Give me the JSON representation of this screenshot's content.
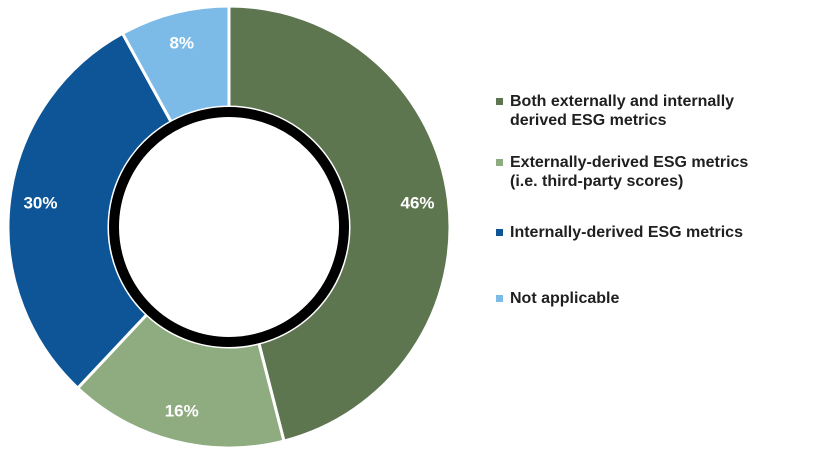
{
  "chart_data": {
    "type": "pie",
    "variant": "donut",
    "title": "",
    "legend_position": "right",
    "slices": [
      {
        "label": "Both externally and internally\nderived ESG metrics",
        "value": 46,
        "value_label": "46%",
        "color": "#5e7650"
      },
      {
        "label": "Externally-derived ESG metrics\n(i.e. third-party scores)",
        "value": 16,
        "value_label": "16%",
        "color": "#8fab80"
      },
      {
        "label": "Internally-derived ESG metrics",
        "value": 30,
        "value_label": "30%",
        "color": "#0d5597"
      },
      {
        "label": "Not applicable",
        "value": 8,
        "value_label": "8%",
        "color": "#7cbbe8"
      }
    ]
  },
  "colors": {
    "inner_ring": "#000000",
    "background": "#ffffff"
  }
}
